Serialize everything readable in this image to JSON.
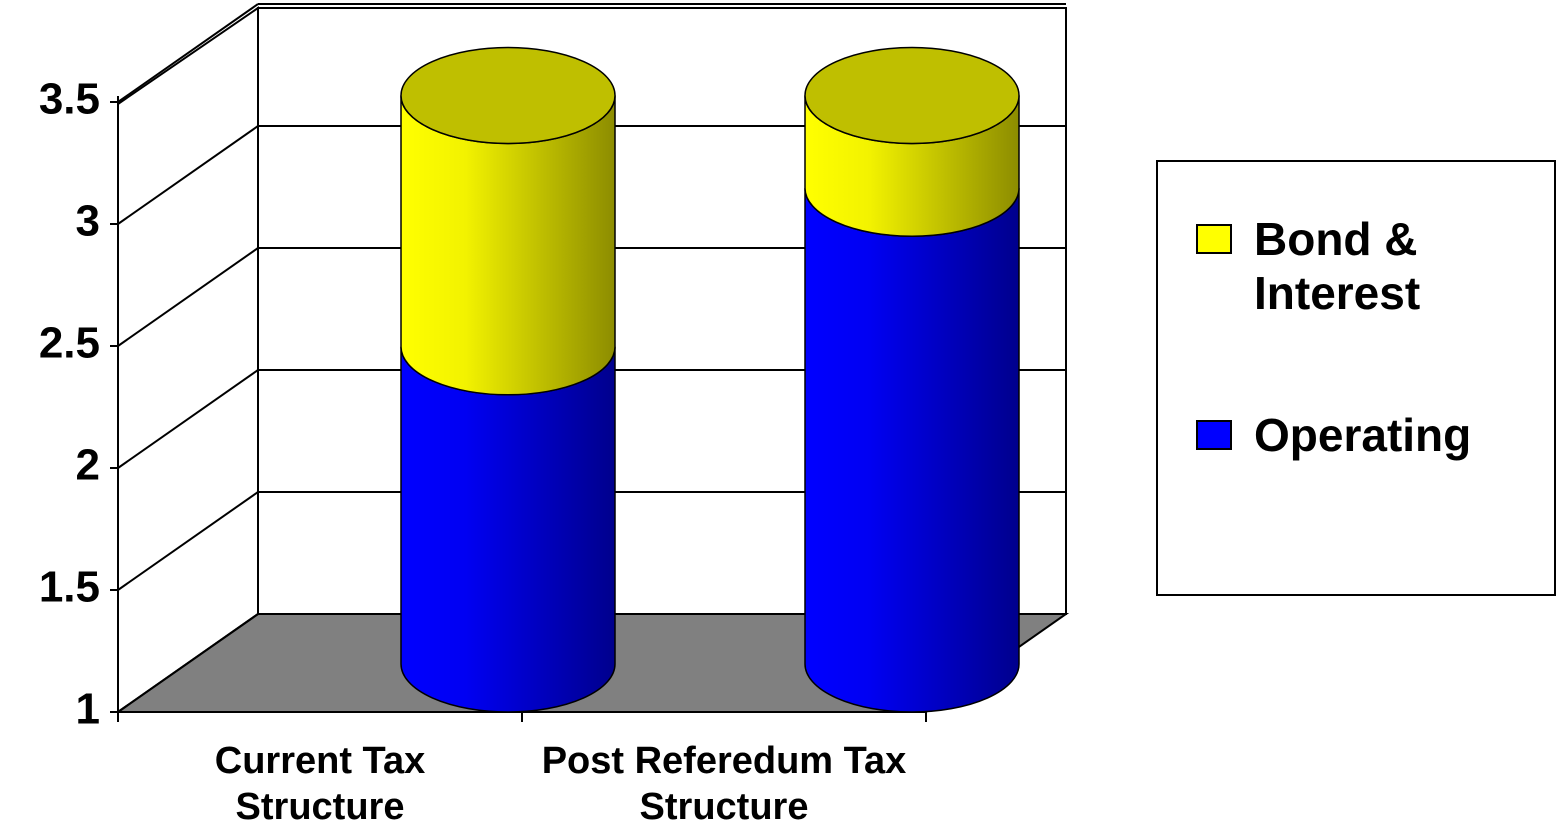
{
  "chart_data": {
    "type": "bar3d_stacked_cylinder",
    "categories": [
      "Current Tax Structure",
      "Post Referedum Tax Structure"
    ],
    "series": [
      {
        "name": "Operating",
        "color": "#0000ff",
        "values": [
          2.3,
          2.95
        ]
      },
      {
        "name": "Bond & Interest",
        "color": "#ffff00",
        "values": [
          1.03,
          0.38
        ]
      }
    ],
    "ylim": [
      1,
      3.5
    ],
    "yticks": [
      1,
      1.5,
      2,
      2.5,
      3,
      3.5
    ],
    "grid": true,
    "legend": "right"
  }
}
